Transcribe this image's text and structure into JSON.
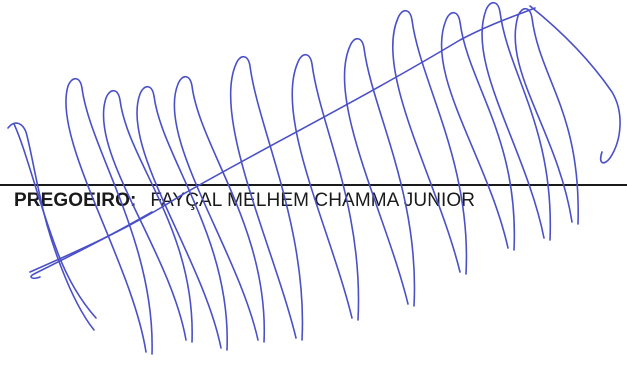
{
  "document": {
    "role_label": "PREGOEIRO:",
    "signer_name": "FAYÇAL MELHEM CHAMMA JUNIOR"
  },
  "signature": {
    "ink_color": "#4a50c8",
    "style": "handwritten-scribble"
  }
}
